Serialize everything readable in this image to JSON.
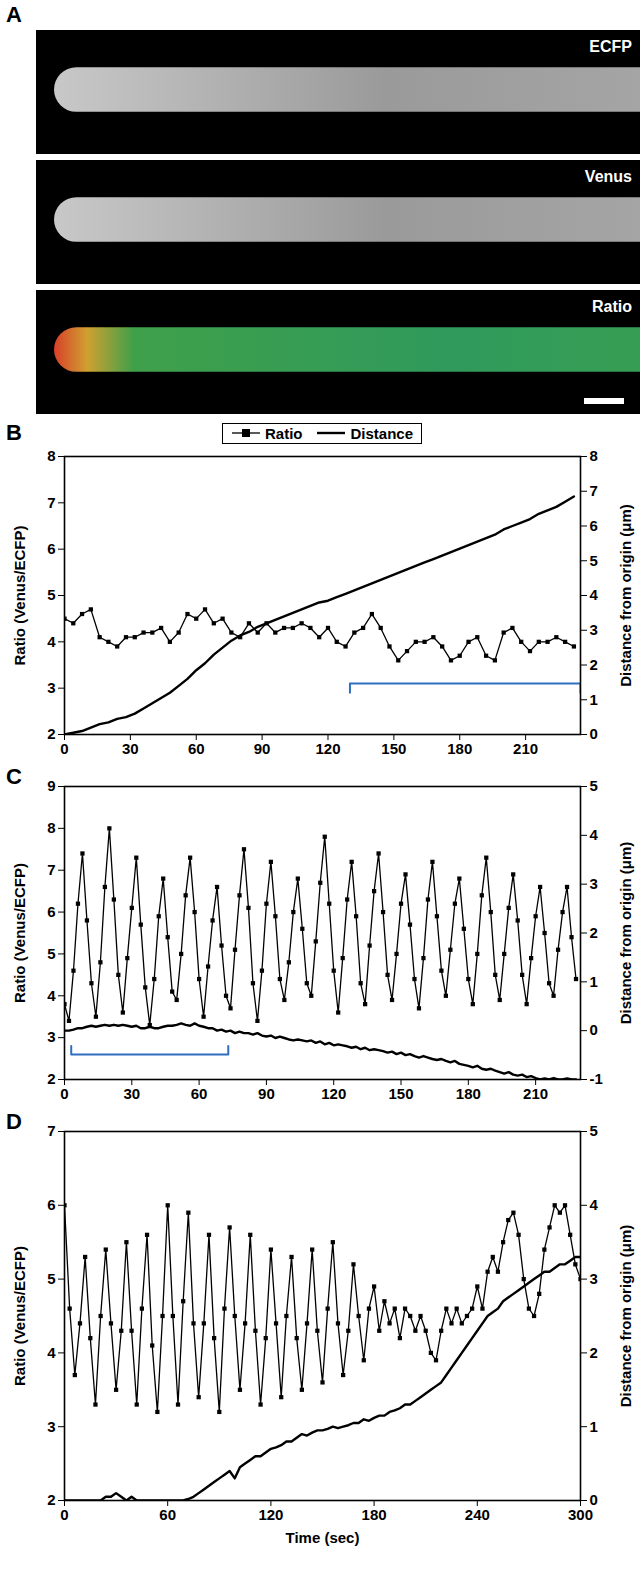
{
  "panel_a": {
    "letter": "A",
    "images": [
      "ECFP",
      "Venus",
      "Ratio"
    ]
  },
  "chart_data": [
    {
      "letter": "B",
      "type": "line",
      "legend": "top",
      "ylabel": "Ratio (Venus/ECFP)",
      "y2label": "Distance from origin (μm)",
      "xlim": [
        0,
        235
      ],
      "xticks": [
        0,
        30,
        60,
        90,
        120,
        150,
        180,
        210
      ],
      "ylim": [
        2,
        8
      ],
      "yticks": [
        2,
        3,
        4,
        5,
        6,
        7,
        8
      ],
      "y2lim": [
        0,
        8
      ],
      "y2ticks": [
        0,
        1,
        2,
        3,
        4,
        5,
        6,
        7,
        8
      ],
      "bracket": {
        "x": [
          130,
          235
        ],
        "y": 3.1,
        "tip": 2.9,
        "color": "#2f6fc0"
      },
      "x": [
        0,
        4,
        8,
        12,
        16,
        20,
        24,
        28,
        32,
        36,
        40,
        44,
        48,
        52,
        56,
        60,
        64,
        68,
        72,
        76,
        80,
        84,
        88,
        92,
        96,
        100,
        104,
        108,
        112,
        116,
        120,
        124,
        128,
        132,
        136,
        140,
        144,
        148,
        152,
        156,
        160,
        164,
        168,
        172,
        176,
        180,
        184,
        188,
        192,
        196,
        200,
        204,
        208,
        212,
        216,
        220,
        224,
        228,
        232
      ],
      "series": [
        {
          "name": "Ratio",
          "color": "#000000",
          "marker": "square",
          "line_style": "solid",
          "values": [
            4.5,
            4.4,
            4.6,
            4.7,
            4.1,
            4.0,
            3.9,
            4.1,
            4.1,
            4.2,
            4.2,
            4.3,
            4.0,
            4.2,
            4.6,
            4.5,
            4.7,
            4.4,
            4.5,
            4.2,
            4.1,
            4.4,
            4.2,
            4.4,
            4.2,
            4.3,
            4.3,
            4.4,
            4.3,
            4.1,
            4.3,
            4.0,
            3.9,
            4.2,
            4.3,
            4.6,
            4.3,
            3.9,
            3.6,
            3.8,
            4.0,
            4.0,
            4.1,
            3.9,
            3.6,
            3.7,
            4.0,
            4.1,
            3.7,
            3.6,
            4.2,
            4.3,
            4.0,
            3.8,
            4.0,
            4.0,
            4.1,
            4.0,
            3.9
          ]
        },
        {
          "name": "Distance",
          "color": "#000000",
          "marker": "none",
          "line_style": "solid",
          "axis": "y2",
          "values": [
            0,
            0.05,
            0.1,
            0.2,
            0.3,
            0.35,
            0.45,
            0.5,
            0.6,
            0.75,
            0.9,
            1.05,
            1.2,
            1.4,
            1.6,
            1.85,
            2.05,
            2.3,
            2.5,
            2.7,
            2.85,
            2.95,
            3.1,
            3.2,
            3.3,
            3.4,
            3.5,
            3.6,
            3.7,
            3.8,
            3.85,
            3.95,
            4.05,
            4.15,
            4.25,
            4.35,
            4.45,
            4.55,
            4.65,
            4.75,
            4.85,
            4.95,
            5.05,
            5.15,
            5.25,
            5.35,
            5.45,
            5.55,
            5.65,
            5.75,
            5.9,
            6.0,
            6.1,
            6.2,
            6.35,
            6.45,
            6.55,
            6.7,
            6.85
          ]
        }
      ]
    },
    {
      "letter": "C",
      "type": "line",
      "ylabel": "Ratio (Venus/ECFP)",
      "y2label": "Distance from origin (μm)",
      "xlim": [
        0,
        230
      ],
      "xticks": [
        0,
        30,
        60,
        90,
        120,
        150,
        180,
        210
      ],
      "ylim": [
        2,
        9
      ],
      "yticks": [
        2,
        3,
        4,
        5,
        6,
        7,
        8,
        9
      ],
      "y2lim": [
        -1,
        5
      ],
      "y2ticks": [
        -1,
        0,
        1,
        2,
        3,
        4,
        5
      ],
      "bracket": {
        "x": [
          3,
          73
        ],
        "y": 2.6,
        "tip": 2.8,
        "color": "#2f6fc0"
      },
      "x": [
        0,
        2,
        4,
        6,
        8,
        10,
        12,
        14,
        16,
        18,
        20,
        22,
        24,
        26,
        28,
        30,
        32,
        34,
        36,
        38,
        40,
        42,
        44,
        46,
        48,
        50,
        52,
        54,
        56,
        58,
        60,
        62,
        64,
        66,
        68,
        70,
        72,
        74,
        76,
        78,
        80,
        82,
        84,
        86,
        88,
        90,
        92,
        94,
        96,
        98,
        100,
        102,
        104,
        106,
        108,
        110,
        112,
        114,
        116,
        118,
        120,
        122,
        124,
        126,
        128,
        130,
        132,
        134,
        136,
        138,
        140,
        142,
        144,
        146,
        148,
        150,
        152,
        154,
        156,
        158,
        160,
        162,
        164,
        166,
        168,
        170,
        172,
        174,
        176,
        178,
        180,
        182,
        184,
        186,
        188,
        190,
        192,
        194,
        196,
        198,
        200,
        202,
        204,
        206,
        208,
        210,
        212,
        214,
        216,
        218,
        220,
        222,
        224,
        226,
        228
      ],
      "series": [
        {
          "color": "#000000",
          "marker": "square",
          "line_style": "solid",
          "values": [
            3.8,
            3.4,
            4.6,
            6.2,
            7.4,
            5.8,
            4.3,
            3.5,
            4.8,
            6.6,
            8.0,
            6.3,
            4.5,
            3.6,
            4.9,
            6.1,
            7.3,
            5.7,
            4.2,
            3.3,
            4.4,
            5.9,
            6.8,
            5.4,
            4.1,
            3.9,
            5.0,
            6.4,
            7.3,
            6.0,
            4.4,
            3.5,
            4.7,
            5.8,
            6.6,
            5.2,
            4.0,
            3.7,
            5.1,
            6.4,
            7.5,
            6.1,
            4.3,
            3.4,
            4.6,
            6.2,
            7.2,
            5.9,
            4.4,
            3.9,
            4.8,
            6.0,
            6.8,
            5.6,
            4.3,
            4.0,
            5.3,
            6.7,
            7.8,
            6.2,
            4.6,
            3.6,
            4.9,
            6.3,
            7.2,
            5.9,
            4.3,
            3.8,
            5.2,
            6.5,
            7.4,
            6.0,
            4.5,
            3.9,
            5.0,
            6.2,
            6.9,
            5.7,
            4.4,
            3.7,
            4.9,
            6.3,
            7.2,
            5.9,
            4.6,
            4.0,
            5.1,
            6.2,
            6.8,
            5.6,
            4.4,
            3.8,
            5.0,
            6.4,
            7.3,
            6.0,
            4.5,
            3.9,
            5.0,
            6.1,
            6.9,
            5.8,
            4.5,
            3.8,
            4.9,
            5.9,
            6.6,
            5.5,
            4.3,
            4.0,
            5.1,
            6.0,
            6.6,
            5.4,
            4.4
          ]
        },
        {
          "color": "#000000",
          "marker": "none",
          "line_style": "solid",
          "axis": "y2",
          "values": [
            0.0,
            0.0,
            0.02,
            0.05,
            0.05,
            0.08,
            0.1,
            0.08,
            0.1,
            0.12,
            0.1,
            0.12,
            0.1,
            0.12,
            0.1,
            0.08,
            0.1,
            0.05,
            0.05,
            0.08,
            0.05,
            0.05,
            0.08,
            0.1,
            0.1,
            0.12,
            0.15,
            0.12,
            0.1,
            0.15,
            0.1,
            0.08,
            0.05,
            0.05,
            0.0,
            0.02,
            -0.02,
            0.0,
            -0.05,
            -0.02,
            -0.05,
            -0.05,
            -0.08,
            -0.05,
            -0.1,
            -0.12,
            -0.1,
            -0.15,
            -0.12,
            -0.15,
            -0.18,
            -0.2,
            -0.18,
            -0.2,
            -0.22,
            -0.2,
            -0.25,
            -0.22,
            -0.28,
            -0.25,
            -0.3,
            -0.28,
            -0.3,
            -0.32,
            -0.35,
            -0.33,
            -0.38,
            -0.35,
            -0.4,
            -0.38,
            -0.4,
            -0.42,
            -0.45,
            -0.43,
            -0.48,
            -0.45,
            -0.5,
            -0.48,
            -0.52,
            -0.55,
            -0.52,
            -0.55,
            -0.58,
            -0.6,
            -0.58,
            -0.62,
            -0.65,
            -0.62,
            -0.68,
            -0.7,
            -0.72,
            -0.75,
            -0.72,
            -0.78,
            -0.8,
            -0.78,
            -0.82,
            -0.85,
            -0.88,
            -0.85,
            -0.9,
            -0.92,
            -0.9,
            -0.95,
            -0.93,
            -0.97,
            -1.0,
            -0.98,
            -1.0,
            -0.97,
            -1.0,
            -1.0,
            -0.98,
            -1.0,
            -1.0
          ]
        }
      ]
    },
    {
      "letter": "D",
      "type": "line",
      "xlabel": "Time (sec)",
      "ylabel": "Ratio (Venus/ECFP)",
      "y2label": "Distance from origin (μm)",
      "xlim": [
        0,
        300
      ],
      "xticks": [
        0,
        60,
        120,
        180,
        240,
        300
      ],
      "ylim": [
        2,
        7
      ],
      "yticks": [
        2,
        3,
        4,
        5,
        6,
        7
      ],
      "y2lim": [
        0,
        5
      ],
      "y2ticks": [
        0,
        1,
        2,
        3,
        4,
        5
      ],
      "x": [
        0,
        3,
        6,
        9,
        12,
        15,
        18,
        21,
        24,
        27,
        30,
        33,
        36,
        39,
        42,
        45,
        48,
        51,
        54,
        57,
        60,
        63,
        66,
        69,
        72,
        75,
        78,
        81,
        84,
        87,
        90,
        93,
        96,
        99,
        102,
        105,
        108,
        111,
        114,
        117,
        120,
        123,
        126,
        129,
        132,
        135,
        138,
        141,
        144,
        147,
        150,
        153,
        156,
        159,
        162,
        165,
        168,
        171,
        174,
        177,
        180,
        183,
        186,
        189,
        192,
        195,
        198,
        201,
        204,
        207,
        210,
        213,
        216,
        219,
        222,
        225,
        228,
        231,
        234,
        237,
        240,
        243,
        246,
        249,
        252,
        255,
        258,
        261,
        264,
        267,
        270,
        273,
        276,
        279,
        282,
        285,
        288,
        291,
        294,
        297,
        300
      ],
      "series": [
        {
          "color": "#000000",
          "marker": "square",
          "line_style": "solid",
          "values": [
            6.0,
            4.6,
            3.7,
            4.4,
            5.3,
            4.2,
            3.3,
            4.5,
            5.4,
            4.4,
            3.5,
            4.3,
            5.5,
            4.3,
            3.3,
            4.6,
            5.6,
            4.1,
            3.2,
            4.5,
            6.0,
            4.5,
            3.3,
            4.7,
            5.9,
            4.4,
            3.4,
            4.4,
            5.6,
            4.2,
            3.2,
            4.6,
            5.7,
            4.5,
            3.5,
            4.4,
            5.6,
            4.3,
            3.3,
            4.2,
            5.4,
            4.4,
            3.4,
            4.5,
            5.3,
            4.2,
            3.5,
            4.4,
            5.4,
            4.3,
            3.6,
            4.6,
            5.5,
            4.4,
            3.7,
            4.3,
            5.2,
            4.5,
            3.9,
            4.6,
            4.9,
            4.3,
            4.7,
            4.4,
            4.6,
            4.2,
            4.6,
            4.5,
            4.3,
            4.5,
            4.3,
            4.0,
            3.9,
            4.3,
            4.6,
            4.4,
            4.6,
            4.4,
            4.5,
            4.6,
            4.9,
            4.6,
            5.1,
            5.3,
            5.1,
            5.5,
            5.8,
            5.9,
            5.6,
            5.0,
            4.6,
            4.5,
            4.8,
            5.4,
            5.7,
            6.0,
            5.9,
            6.0,
            5.6,
            5.2,
            5.0
          ]
        },
        {
          "color": "#000000",
          "marker": "none",
          "line_style": "solid",
          "axis": "y2",
          "values": [
            0,
            0,
            0,
            0,
            0,
            0,
            0,
            0,
            0.05,
            0.05,
            0.1,
            0.05,
            0,
            0.05,
            0,
            0,
            0,
            0,
            0,
            0,
            0,
            0,
            0,
            0,
            0.02,
            0.05,
            0.1,
            0.15,
            0.2,
            0.25,
            0.3,
            0.35,
            0.4,
            0.3,
            0.45,
            0.5,
            0.55,
            0.6,
            0.6,
            0.65,
            0.7,
            0.72,
            0.75,
            0.8,
            0.8,
            0.85,
            0.9,
            0.88,
            0.92,
            0.95,
            0.95,
            0.97,
            1.0,
            0.98,
            1.0,
            1.02,
            1.05,
            1.05,
            1.1,
            1.08,
            1.12,
            1.15,
            1.15,
            1.2,
            1.22,
            1.25,
            1.3,
            1.3,
            1.35,
            1.4,
            1.45,
            1.5,
            1.55,
            1.6,
            1.7,
            1.8,
            1.9,
            2.0,
            2.1,
            2.2,
            2.3,
            2.4,
            2.5,
            2.55,
            2.6,
            2.7,
            2.75,
            2.8,
            2.85,
            2.9,
            2.95,
            3.0,
            3.05,
            3.1,
            3.1,
            3.15,
            3.2,
            3.2,
            3.25,
            3.3,
            3.3
          ]
        }
      ]
    }
  ]
}
